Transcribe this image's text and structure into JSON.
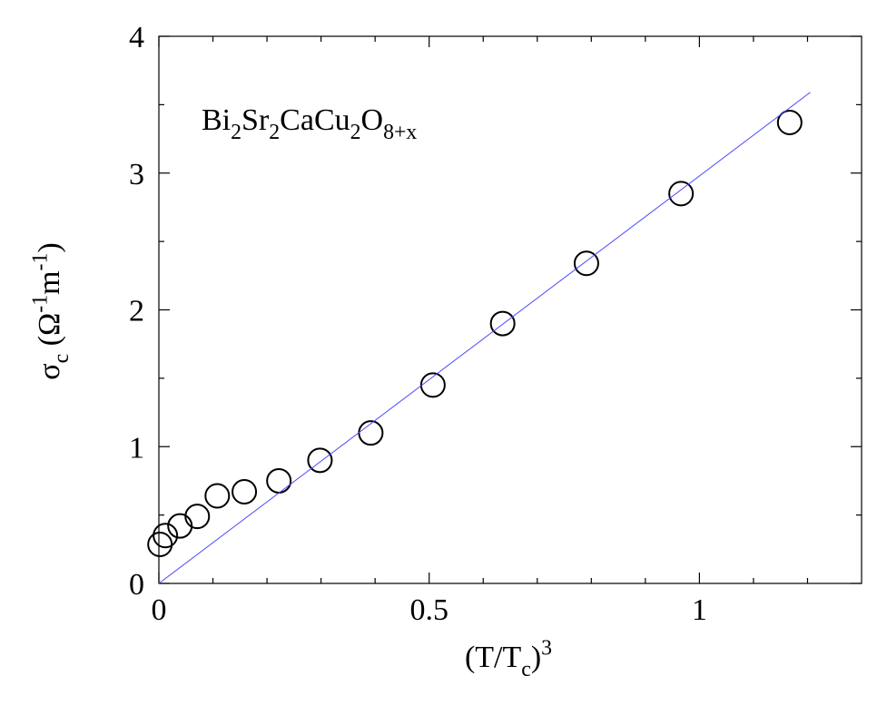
{
  "chart_data": {
    "type": "scatter",
    "annotation": [
      {
        "text": "Bi",
        "shift": "base"
      },
      {
        "text": "2",
        "shift": "sub"
      },
      {
        "text": "Sr",
        "shift": "base"
      },
      {
        "text": "2",
        "shift": "sub"
      },
      {
        "text": "CaCu",
        "shift": "base"
      },
      {
        "text": "2",
        "shift": "sub"
      },
      {
        "text": "O",
        "shift": "base"
      },
      {
        "text": "8+x",
        "shift": "sub"
      }
    ],
    "x_label": [
      {
        "text": "(T/T",
        "shift": "base"
      },
      {
        "text": "c",
        "shift": "sub"
      },
      {
        "text": ")",
        "shift": "base"
      },
      {
        "text": "3",
        "shift": "sup"
      }
    ],
    "y_label": [
      {
        "text": "σ",
        "shift": "base"
      },
      {
        "text": "c",
        "shift": "sub"
      },
      {
        "text": " (Ω",
        "shift": "base"
      },
      {
        "text": "-1",
        "shift": "sup"
      },
      {
        "text": "m",
        "shift": "base"
      },
      {
        "text": "-1",
        "shift": "sup"
      },
      {
        "text": ")",
        "shift": "base"
      }
    ],
    "xlim": [
      0,
      1.3
    ],
    "ylim": [
      0,
      4
    ],
    "xticks": [
      0,
      0.5,
      1
    ],
    "yticks": [
      0,
      1,
      2,
      3,
      4
    ],
    "xminorticks": [
      0.1,
      0.2,
      0.3,
      0.4,
      0.6,
      0.7,
      0.8,
      0.9,
      1.1,
      1.2
    ],
    "yminorticks": [
      0.5,
      1.5,
      2.5,
      3.5
    ],
    "series": [
      {
        "kind": "markers",
        "color": "#000000",
        "x": [
          0.002,
          0.012,
          0.039,
          0.071,
          0.108,
          0.158,
          0.222,
          0.298,
          0.392,
          0.507,
          0.636,
          0.791,
          0.966,
          1.167
        ],
        "values": [
          0.285,
          0.35,
          0.42,
          0.49,
          0.64,
          0.67,
          0.75,
          0.9,
          1.1,
          1.45,
          1.9,
          2.34,
          2.85,
          3.37
        ]
      },
      {
        "kind": "line",
        "color": "#4a4aff",
        "x": [
          0,
          1.205
        ],
        "values": [
          0,
          3.59
        ]
      }
    ]
  }
}
